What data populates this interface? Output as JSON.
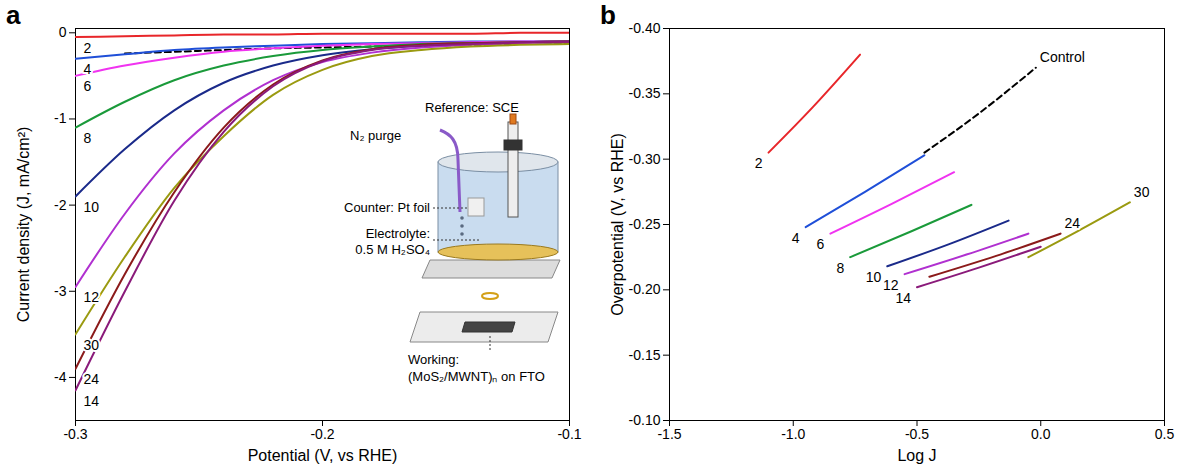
{
  "chart_data": [
    {
      "panel": "a",
      "type": "line",
      "x_label": "Potential (V, vs RHE)",
      "y_label": "Current density (J, mA/cm²)",
      "xlim": [
        -0.3,
        -0.1
      ],
      "xticks": [
        -0.3,
        -0.2,
        -0.1
      ],
      "ylim": [
        -4.5,
        0.05
      ],
      "yticks": [
        0,
        -1,
        -2,
        -3,
        -4
      ],
      "x": [
        -0.3,
        -0.28,
        -0.26,
        -0.24,
        -0.22,
        -0.2,
        -0.18,
        -0.16,
        -0.14,
        -0.12,
        -0.1
      ],
      "series": [
        {
          "name": "2",
          "color": "#e8262a",
          "values": [
            -0.05,
            -0.04,
            -0.03,
            -0.02,
            -0.02,
            -0.01,
            -0.01,
            -0.01,
            -0.01,
            0,
            0
          ]
        },
        {
          "name": null,
          "color": "#000000",
          "line_style": "dashed",
          "values": [
            null,
            -0.24,
            -0.22,
            -0.2,
            -0.18,
            -0.17,
            -0.16,
            -0.15,
            -0.14,
            -0.13,
            -0.12
          ]
        },
        {
          "name": "4",
          "color": "#1f4fd8",
          "values": [
            -0.3,
            -0.25,
            -0.2,
            -0.17,
            -0.15,
            -0.13,
            -0.12,
            -0.11,
            -0.1,
            -0.1,
            -0.1
          ]
        },
        {
          "name": "6",
          "color": "#f033f0",
          "values": [
            -0.5,
            -0.38,
            -0.29,
            -0.22,
            -0.18,
            -0.15,
            -0.13,
            -0.12,
            -0.11,
            -0.1,
            -0.1
          ]
        },
        {
          "name": "8",
          "color": "#1a9a3a",
          "values": [
            -1.1,
            -0.8,
            -0.55,
            -0.38,
            -0.27,
            -0.2,
            -0.16,
            -0.13,
            -0.12,
            -0.11,
            -0.1
          ]
        },
        {
          "name": "10",
          "color": "#1a2a8a",
          "values": [
            -1.9,
            -1.35,
            -0.9,
            -0.58,
            -0.38,
            -0.26,
            -0.19,
            -0.15,
            -0.13,
            -0.12,
            -0.11
          ]
        },
        {
          "name": "12",
          "color": "#b030d0",
          "values": [
            -2.95,
            -2.1,
            -1.4,
            -0.9,
            -0.55,
            -0.34,
            -0.23,
            -0.17,
            -0.14,
            -0.12,
            -0.11
          ]
        },
        {
          "name": "30",
          "color": "#9a9a10",
          "values": [
            -3.5,
            -2.6,
            -1.8,
            -1.2,
            -0.72,
            -0.43,
            -0.27,
            -0.2,
            -0.16,
            -0.14,
            -0.13
          ]
        },
        {
          "name": "24",
          "color": "#8b1a1a",
          "values": [
            -3.9,
            -2.8,
            -1.85,
            -1.1,
            -0.6,
            -0.32,
            -0.19,
            -0.14,
            -0.12,
            -0.11,
            -0.1
          ]
        },
        {
          "name": "14",
          "color": "#8a1a7a",
          "values": [
            -4.15,
            -3.0,
            -1.95,
            -1.15,
            -0.62,
            -0.33,
            -0.2,
            -0.15,
            -0.13,
            -0.11,
            -0.1
          ]
        }
      ],
      "annotations": {
        "reference": "Reference: SCE",
        "purge": "N₂ purge",
        "counter": "Counter: Pt foil",
        "electrolyte": [
          "Electrolyte:",
          "0.5 M H₂SO₄"
        ],
        "working": [
          "Working:",
          "(MoS₂/MWNT)ₙ on FTO"
        ]
      }
    },
    {
      "panel": "b",
      "type": "line",
      "x_label": "Log J",
      "y_label": "Overpotential (V, vs RHE)",
      "xlim": [
        -1.5,
        0.5
      ],
      "xticks": [
        -1.5,
        {
          "value": -1.0,
          "label": "-1.0"
        },
        -0.5,
        {
          "value": 0,
          "label": "0.0"
        },
        0.5
      ],
      "ylim": [
        -0.1,
        -0.4
      ],
      "yticks": [
        {
          "value": -0.4,
          "label": "-0.40"
        },
        -0.35,
        {
          "value": -0.3,
          "label": "-0.30"
        },
        -0.25,
        {
          "value": -0.2,
          "label": "-0.20"
        },
        -0.15,
        {
          "value": -0.1,
          "label": "-0.10"
        }
      ],
      "series": [
        {
          "name": "2",
          "color": "#e8262a",
          "x": [
            -1.1,
            -0.92,
            -0.73
          ],
          "values": [
            -0.305,
            -0.34,
            -0.38
          ]
        },
        {
          "name": "4",
          "color": "#1f4fd8",
          "x": [
            -0.95,
            -0.71,
            -0.47
          ],
          "values": [
            -0.248,
            -0.275,
            -0.303
          ]
        },
        {
          "name": "Control",
          "color": "#000000",
          "line_style": "dashed",
          "x": [
            -0.47,
            -0.25,
            -0.02
          ],
          "values": [
            -0.305,
            -0.335,
            -0.37
          ]
        },
        {
          "name": "6",
          "color": "#f033f0",
          "x": [
            -0.85,
            -0.6,
            -0.35
          ],
          "values": [
            -0.243,
            -0.266,
            -0.29
          ]
        },
        {
          "name": "8",
          "color": "#1a9a3a",
          "x": [
            -0.77,
            -0.52,
            -0.28
          ],
          "values": [
            -0.225,
            -0.245,
            -0.265
          ]
        },
        {
          "name": "10",
          "color": "#1a2a8a",
          "x": [
            -0.62,
            -0.37,
            -0.13
          ],
          "values": [
            -0.218,
            -0.235,
            -0.253
          ]
        },
        {
          "name": "12",
          "color": "#b030d0",
          "x": [
            -0.55,
            -0.3,
            -0.05
          ],
          "values": [
            -0.212,
            -0.227,
            -0.243
          ]
        },
        {
          "name": "14",
          "color": "#8a1a7a",
          "x": [
            -0.5,
            -0.25,
            0.0
          ],
          "values": [
            -0.202,
            -0.217,
            -0.233
          ]
        },
        {
          "name": "24",
          "color": "#8b1a1a",
          "x": [
            -0.45,
            -0.18,
            0.08
          ],
          "values": [
            -0.21,
            -0.226,
            -0.243
          ]
        },
        {
          "name": "30",
          "color": "#9a9a10",
          "x": [
            -0.05,
            0.15,
            0.36
          ],
          "values": [
            -0.225,
            -0.245,
            -0.267
          ]
        }
      ]
    }
  ]
}
